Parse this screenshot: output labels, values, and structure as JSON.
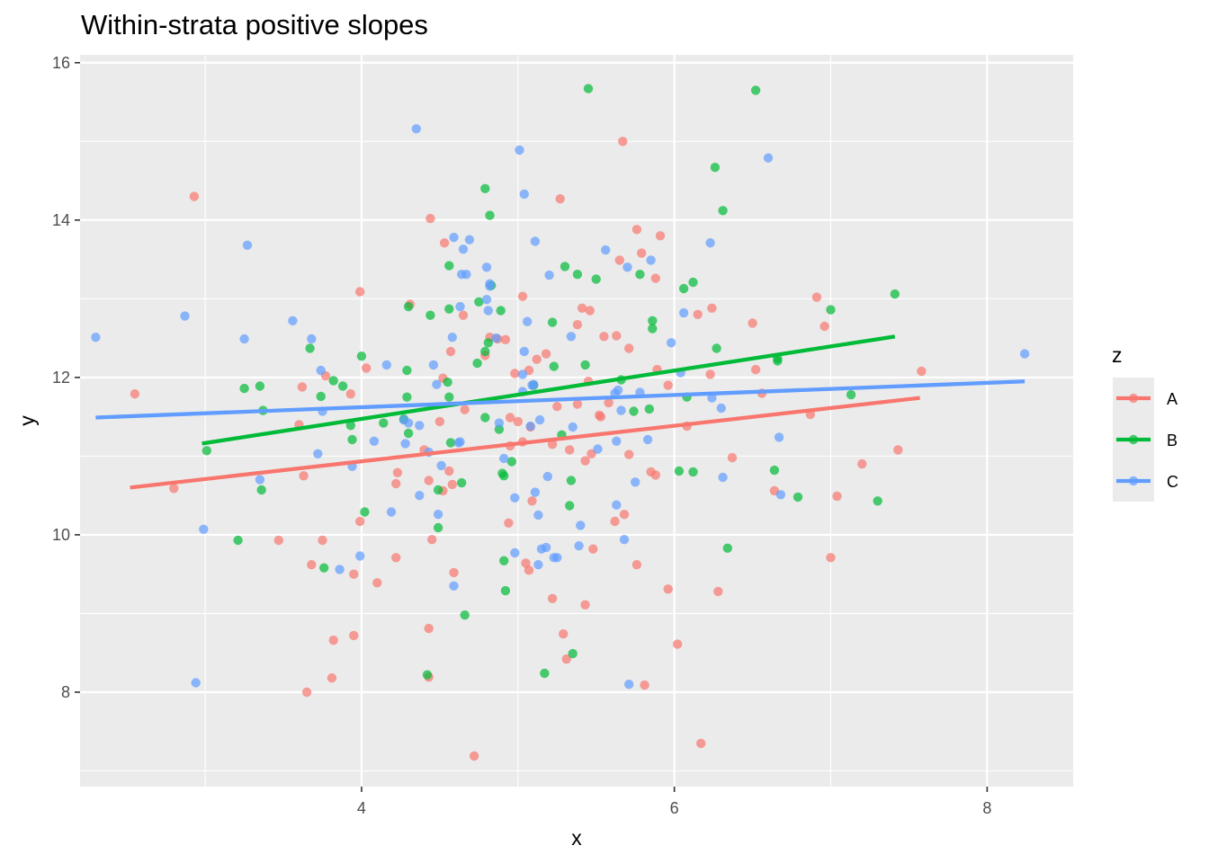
{
  "chart_data": {
    "type": "scatter",
    "title": "Within-strata positive slopes",
    "xlabel": "x",
    "ylabel": "y",
    "xlim": [
      2.2,
      8.55
    ],
    "ylim": [
      6.8,
      16.1
    ],
    "x_ticks": [
      4,
      6,
      8
    ],
    "y_ticks": [
      8,
      10,
      12,
      14,
      16
    ],
    "grid": true,
    "legend": {
      "title": "z",
      "position": "right",
      "entries": [
        "A",
        "B",
        "C"
      ]
    },
    "series": [
      {
        "name": "A",
        "color": "#F8766D",
        "fit_line": {
          "x": [
            2.52,
            7.57
          ],
          "y": [
            10.6,
            11.74
          ]
        },
        "points": [
          [
            2.93,
            14.3
          ],
          [
            2.55,
            11.79
          ],
          [
            2.8,
            10.59
          ],
          [
            3.47,
            9.93
          ],
          [
            3.6,
            11.4
          ],
          [
            3.62,
            11.88
          ],
          [
            3.63,
            10.75
          ],
          [
            3.68,
            9.62
          ],
          [
            3.65,
            8.0
          ],
          [
            3.75,
            9.93
          ],
          [
            3.77,
            12.02
          ],
          [
            3.82,
            8.66
          ],
          [
            3.81,
            8.18
          ],
          [
            3.93,
            11.79
          ],
          [
            3.95,
            9.5
          ],
          [
            3.95,
            8.72
          ],
          [
            3.99,
            10.17
          ],
          [
            3.99,
            13.09
          ],
          [
            4.03,
            12.12
          ],
          [
            4.1,
            9.39
          ],
          [
            4.22,
            9.71
          ],
          [
            4.22,
            10.65
          ],
          [
            4.23,
            10.79
          ],
          [
            4.31,
            12.93
          ],
          [
            4.4,
            11.08
          ],
          [
            4.43,
            10.69
          ],
          [
            4.43,
            8.81
          ],
          [
            4.43,
            8.19
          ],
          [
            4.44,
            14.02
          ],
          [
            4.45,
            9.94
          ],
          [
            4.5,
            11.44
          ],
          [
            4.52,
            10.56
          ],
          [
            4.52,
            11.99
          ],
          [
            4.53,
            13.71
          ],
          [
            4.56,
            10.81
          ],
          [
            4.57,
            12.33
          ],
          [
            4.58,
            10.64
          ],
          [
            4.59,
            9.52
          ],
          [
            4.65,
            12.79
          ],
          [
            4.66,
            11.59
          ],
          [
            4.72,
            7.19
          ],
          [
            4.79,
            12.28
          ],
          [
            4.82,
            12.51
          ],
          [
            4.87,
            12.49
          ],
          [
            4.92,
            12.48
          ],
          [
            4.95,
            11.49
          ],
          [
            4.95,
            11.13
          ],
          [
            4.94,
            10.15
          ],
          [
            4.98,
            12.05
          ],
          [
            5.0,
            11.44
          ],
          [
            5.03,
            11.18
          ],
          [
            5.03,
            13.03
          ],
          [
            5.05,
            9.64
          ],
          [
            5.07,
            9.55
          ],
          [
            5.07,
            12.09
          ],
          [
            5.09,
            10.43
          ],
          [
            5.08,
            11.37
          ],
          [
            5.12,
            12.23
          ],
          [
            5.18,
            12.3
          ],
          [
            5.22,
            9.19
          ],
          [
            5.22,
            11.15
          ],
          [
            5.25,
            11.63
          ],
          [
            5.27,
            14.27
          ],
          [
            5.29,
            8.74
          ],
          [
            5.31,
            8.42
          ],
          [
            5.33,
            11.08
          ],
          [
            5.38,
            12.67
          ],
          [
            5.38,
            11.66
          ],
          [
            5.41,
            12.88
          ],
          [
            5.43,
            10.94
          ],
          [
            5.43,
            9.11
          ],
          [
            5.45,
            11.95
          ],
          [
            5.46,
            12.85
          ],
          [
            5.47,
            11.03
          ],
          [
            5.48,
            9.82
          ],
          [
            5.52,
            11.52
          ],
          [
            5.53,
            11.5
          ],
          [
            5.55,
            12.52
          ],
          [
            5.58,
            11.68
          ],
          [
            5.62,
            10.17
          ],
          [
            5.63,
            12.53
          ],
          [
            5.65,
            13.49
          ],
          [
            5.67,
            15.0
          ],
          [
            5.68,
            10.26
          ],
          [
            5.71,
            11.02
          ],
          [
            5.71,
            12.37
          ],
          [
            5.76,
            13.88
          ],
          [
            5.76,
            9.62
          ],
          [
            5.79,
            13.58
          ],
          [
            5.81,
            8.09
          ],
          [
            5.85,
            10.8
          ],
          [
            5.88,
            13.26
          ],
          [
            5.88,
            10.76
          ],
          [
            5.89,
            12.1
          ],
          [
            5.91,
            13.8
          ],
          [
            5.96,
            11.9
          ],
          [
            5.96,
            9.31
          ],
          [
            6.02,
            8.61
          ],
          [
            6.08,
            11.38
          ],
          [
            6.15,
            12.8
          ],
          [
            6.17,
            7.35
          ],
          [
            6.24,
            12.88
          ],
          [
            6.23,
            12.04
          ],
          [
            6.28,
            9.28
          ],
          [
            6.37,
            10.98
          ],
          [
            6.5,
            12.69
          ],
          [
            6.52,
            12.1
          ],
          [
            6.56,
            11.8
          ],
          [
            6.64,
            10.56
          ],
          [
            6.87,
            11.53
          ],
          [
            6.91,
            13.02
          ],
          [
            6.96,
            12.65
          ],
          [
            7.0,
            9.71
          ],
          [
            7.04,
            10.49
          ],
          [
            7.2,
            10.9
          ],
          [
            7.43,
            11.08
          ],
          [
            7.58,
            12.08
          ]
        ]
      },
      {
        "name": "B",
        "color": "#00BA38",
        "fit_line": {
          "x": [
            2.98,
            7.41
          ],
          "y": [
            11.16,
            12.52
          ]
        },
        "points": [
          [
            3.01,
            11.07
          ],
          [
            3.21,
            9.93
          ],
          [
            3.25,
            11.86
          ],
          [
            3.35,
            11.89
          ],
          [
            3.36,
            10.57
          ],
          [
            3.37,
            11.58
          ],
          [
            3.67,
            12.37
          ],
          [
            3.74,
            11.76
          ],
          [
            3.76,
            9.58
          ],
          [
            3.82,
            11.96
          ],
          [
            3.88,
            11.89
          ],
          [
            3.93,
            11.39
          ],
          [
            3.94,
            11.21
          ],
          [
            4.0,
            12.27
          ],
          [
            4.02,
            10.29
          ],
          [
            4.14,
            11.42
          ],
          [
            4.27,
            11.47
          ],
          [
            4.29,
            11.75
          ],
          [
            4.29,
            12.09
          ],
          [
            4.3,
            11.29
          ],
          [
            4.3,
            12.9
          ],
          [
            4.42,
            8.22
          ],
          [
            4.44,
            12.79
          ],
          [
            4.49,
            10.09
          ],
          [
            4.49,
            10.57
          ],
          [
            4.55,
            11.94
          ],
          [
            4.56,
            12.87
          ],
          [
            4.56,
            13.42
          ],
          [
            4.56,
            11.75
          ],
          [
            4.57,
            11.17
          ],
          [
            4.64,
            10.66
          ],
          [
            4.66,
            8.98
          ],
          [
            4.74,
            12.18
          ],
          [
            4.75,
            12.96
          ],
          [
            4.79,
            12.33
          ],
          [
            4.79,
            14.4
          ],
          [
            4.79,
            11.49
          ],
          [
            4.81,
            12.44
          ],
          [
            4.82,
            14.06
          ],
          [
            4.83,
            13.17
          ],
          [
            4.88,
            11.34
          ],
          [
            4.89,
            12.85
          ],
          [
            4.9,
            10.78
          ],
          [
            4.91,
            10.75
          ],
          [
            4.91,
            9.67
          ],
          [
            4.92,
            9.29
          ],
          [
            4.96,
            10.93
          ],
          [
            5.1,
            11.9
          ],
          [
            5.17,
            8.24
          ],
          [
            5.22,
            12.7
          ],
          [
            5.23,
            12.14
          ],
          [
            5.28,
            11.27
          ],
          [
            5.3,
            13.41
          ],
          [
            5.33,
            10.37
          ],
          [
            5.34,
            10.69
          ],
          [
            5.35,
            8.49
          ],
          [
            5.38,
            13.31
          ],
          [
            5.43,
            12.16
          ],
          [
            5.45,
            15.67
          ],
          [
            5.5,
            13.25
          ],
          [
            5.66,
            11.97
          ],
          [
            5.74,
            11.57
          ],
          [
            5.78,
            13.31
          ],
          [
            5.84,
            11.6
          ],
          [
            5.86,
            12.62
          ],
          [
            5.86,
            12.72
          ],
          [
            6.03,
            10.81
          ],
          [
            6.06,
            13.13
          ],
          [
            6.08,
            11.75
          ],
          [
            6.12,
            13.21
          ],
          [
            6.12,
            10.8
          ],
          [
            6.26,
            14.67
          ],
          [
            6.27,
            12.37
          ],
          [
            6.31,
            14.12
          ],
          [
            6.34,
            9.83
          ],
          [
            6.52,
            15.65
          ],
          [
            6.64,
            10.82
          ],
          [
            6.66,
            12.24
          ],
          [
            6.66,
            12.21
          ],
          [
            6.79,
            10.48
          ],
          [
            7.0,
            12.86
          ],
          [
            7.13,
            11.78
          ],
          [
            7.3,
            10.43
          ],
          [
            7.41,
            13.06
          ]
        ]
      },
      {
        "name": "C",
        "color": "#619CFF",
        "fit_line": {
          "x": [
            2.3,
            8.24
          ],
          "y": [
            11.49,
            11.95
          ]
        },
        "points": [
          [
            2.3,
            12.51
          ],
          [
            2.87,
            12.78
          ],
          [
            2.94,
            8.12
          ],
          [
            2.99,
            10.07
          ],
          [
            3.25,
            12.49
          ],
          [
            3.27,
            13.68
          ],
          [
            3.35,
            10.7
          ],
          [
            3.56,
            12.72
          ],
          [
            3.68,
            12.49
          ],
          [
            3.72,
            11.03
          ],
          [
            3.74,
            12.09
          ],
          [
            3.75,
            11.57
          ],
          [
            3.86,
            9.56
          ],
          [
            3.94,
            10.87
          ],
          [
            3.99,
            9.73
          ],
          [
            4.08,
            11.19
          ],
          [
            4.16,
            12.16
          ],
          [
            4.19,
            10.29
          ],
          [
            4.27,
            11.46
          ],
          [
            4.28,
            11.16
          ],
          [
            4.3,
            11.42
          ],
          [
            4.35,
            15.16
          ],
          [
            4.37,
            11.39
          ],
          [
            4.37,
            10.5
          ],
          [
            4.43,
            11.05
          ],
          [
            4.46,
            12.16
          ],
          [
            4.48,
            11.91
          ],
          [
            4.49,
            10.26
          ],
          [
            4.51,
            10.88
          ],
          [
            4.58,
            12.51
          ],
          [
            4.59,
            9.35
          ],
          [
            4.59,
            13.78
          ],
          [
            4.62,
            11.17
          ],
          [
            4.63,
            11.18
          ],
          [
            4.63,
            12.9
          ],
          [
            4.64,
            13.31
          ],
          [
            4.65,
            13.63
          ],
          [
            4.67,
            13.31
          ],
          [
            4.69,
            13.75
          ],
          [
            4.8,
            12.99
          ],
          [
            4.8,
            13.4
          ],
          [
            4.81,
            12.85
          ],
          [
            4.82,
            13.19
          ],
          [
            4.82,
            13.16
          ],
          [
            4.86,
            12.5
          ],
          [
            4.88,
            11.42
          ],
          [
            4.91,
            10.97
          ],
          [
            4.98,
            9.77
          ],
          [
            4.98,
            10.47
          ],
          [
            5.01,
            14.89
          ],
          [
            5.03,
            12.04
          ],
          [
            5.03,
            11.82
          ],
          [
            5.04,
            12.33
          ],
          [
            5.04,
            14.33
          ],
          [
            5.06,
            12.71
          ],
          [
            5.08,
            11.38
          ],
          [
            5.09,
            11.9
          ],
          [
            5.1,
            11.91
          ],
          [
            5.11,
            13.73
          ],
          [
            5.11,
            10.54
          ],
          [
            5.13,
            9.62
          ],
          [
            5.13,
            10.25
          ],
          [
            5.14,
            11.46
          ],
          [
            5.15,
            9.82
          ],
          [
            5.18,
            9.84
          ],
          [
            5.19,
            10.74
          ],
          [
            5.2,
            13.3
          ],
          [
            5.23,
            9.71
          ],
          [
            5.25,
            9.71
          ],
          [
            5.34,
            12.52
          ],
          [
            5.35,
            11.37
          ],
          [
            5.39,
            9.86
          ],
          [
            5.4,
            10.12
          ],
          [
            5.51,
            11.09
          ],
          [
            5.56,
            13.62
          ],
          [
            5.62,
            11.8
          ],
          [
            5.63,
            11.19
          ],
          [
            5.63,
            10.38
          ],
          [
            5.64,
            11.84
          ],
          [
            5.66,
            11.58
          ],
          [
            5.68,
            9.94
          ],
          [
            5.7,
            13.4
          ],
          [
            5.71,
            8.1
          ],
          [
            5.75,
            10.67
          ],
          [
            5.78,
            11.81
          ],
          [
            5.83,
            11.21
          ],
          [
            5.85,
            13.49
          ],
          [
            5.98,
            12.44
          ],
          [
            6.04,
            12.06
          ],
          [
            6.06,
            12.82
          ],
          [
            6.23,
            13.71
          ],
          [
            6.24,
            11.74
          ],
          [
            6.3,
            11.61
          ],
          [
            6.31,
            10.73
          ],
          [
            6.6,
            14.79
          ],
          [
            6.67,
            11.24
          ],
          [
            6.68,
            10.51
          ],
          [
            8.24,
            12.3
          ]
        ]
      }
    ]
  }
}
